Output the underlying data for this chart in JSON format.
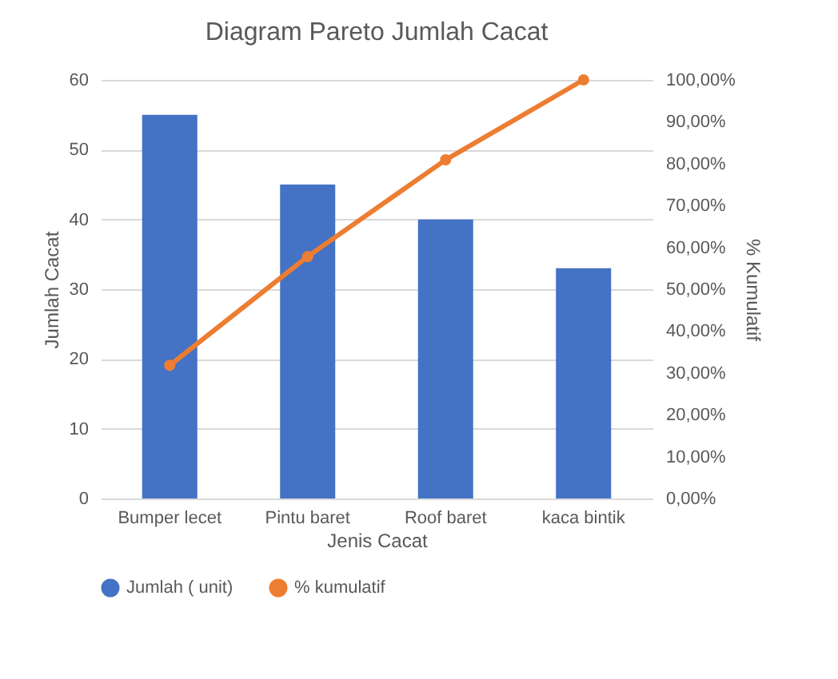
{
  "chart_data": {
    "type": "bar",
    "title": "Diagram Pareto Jumlah Cacat",
    "xlabel": "Jenis Cacat",
    "ylabel": "Jumlah Cacat",
    "y2label": "% Kumulatif",
    "categories": [
      "Bumper lecet",
      "Pintu baret",
      "Roof baret",
      "kaca bintik"
    ],
    "series": [
      {
        "name": "Jumlah ( unit)",
        "color": "#4472c4",
        "values": [
          55,
          45,
          40,
          33
        ]
      },
      {
        "name": "% kumulatif",
        "type": "line",
        "axis": "y2",
        "color": "#ed7d31",
        "marker": "circle",
        "values": [
          31.8,
          57.8,
          80.9,
          100
        ]
      }
    ],
    "ylim": [
      0,
      60
    ],
    "yticks": [
      0,
      10,
      20,
      30,
      40,
      50,
      60
    ],
    "y2lim": [
      0,
      100
    ],
    "y2ticks": [
      {
        "value": 0,
        "label": "0,00%"
      },
      {
        "value": 10,
        "label": "10,00%"
      },
      {
        "value": 20,
        "label": "20,00%"
      },
      {
        "value": 30,
        "label": "30,00%"
      },
      {
        "value": 40,
        "label": "40,00%"
      },
      {
        "value": 50,
        "label": "50,00%"
      },
      {
        "value": 60,
        "label": "60,00%"
      },
      {
        "value": 70,
        "label": "70,00%"
      },
      {
        "value": 80,
        "label": "80,00%"
      },
      {
        "value": 90,
        "label": "90,00%"
      },
      {
        "value": 100,
        "label": "100,00%"
      }
    ],
    "grid": "y",
    "legend": "bottom"
  }
}
